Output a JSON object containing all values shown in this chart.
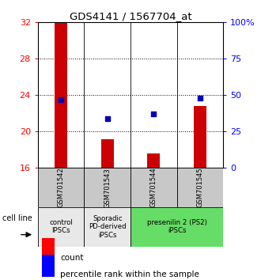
{
  "title": "GDS4141 / 1567704_at",
  "samples": [
    "GSM701542",
    "GSM701543",
    "GSM701544",
    "GSM701545"
  ],
  "count_values": [
    32.0,
    19.2,
    17.6,
    22.8
  ],
  "percentile_values": [
    47,
    34,
    37,
    48
  ],
  "ylim_left": [
    16,
    32
  ],
  "ylim_right": [
    0,
    100
  ],
  "yticks_left": [
    16,
    20,
    24,
    28,
    32
  ],
  "yticks_right": [
    0,
    25,
    50,
    75,
    100
  ],
  "ytick_labels_right": [
    "0",
    "25",
    "50",
    "75",
    "100%"
  ],
  "bar_color": "#cc0000",
  "dot_color": "#0000bb",
  "bar_width": 0.28,
  "dot_size": 22,
  "sample_box_color": "#c8c8c8",
  "cell_line_label": "cell line",
  "legend_count_label": "count",
  "legend_percentile_label": "percentile rank within the sample",
  "group_info": [
    {
      "label": "control\nIPSCs",
      "color": "#e8e8e8",
      "xmin": -0.5,
      "xmax": 0.5
    },
    {
      "label": "Sporadic\nPD-derived\niPSCs",
      "color": "#e8e8e8",
      "xmin": 0.5,
      "xmax": 1.5
    },
    {
      "label": "presenilin 2 (PS2)\niPSCs",
      "color": "#66dd66",
      "xmin": 1.5,
      "xmax": 3.5
    }
  ]
}
